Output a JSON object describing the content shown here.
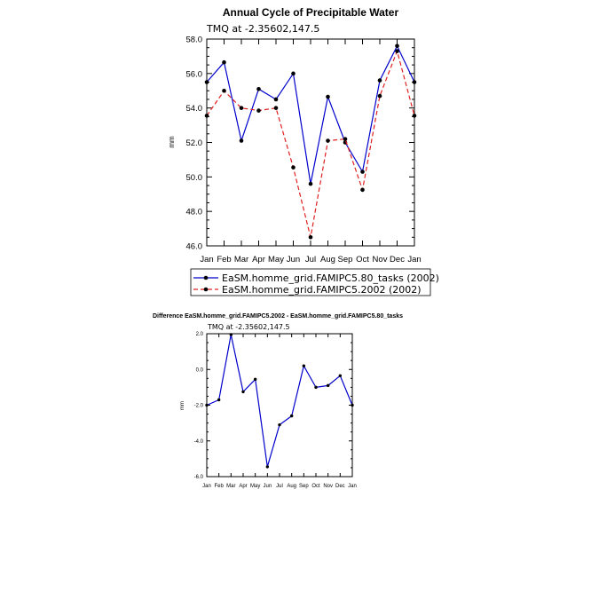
{
  "chart_data": [
    {
      "type": "line",
      "title": "Annual Cycle of Precipitable Water",
      "subtitle": "TMQ at -2.35602,147.5",
      "xlabel": "",
      "ylabel": "mm",
      "categories": [
        "Jan",
        "Feb",
        "Mar",
        "Apr",
        "May",
        "Jun",
        "Jul",
        "Aug",
        "Sep",
        "Oct",
        "Nov",
        "Dec",
        "Jan"
      ],
      "ylim": [
        46.0,
        58.0
      ],
      "yticks": [
        "46.0",
        "48.0",
        "50.0",
        "52.0",
        "54.0",
        "56.0",
        "58.0"
      ],
      "legend_position": "bottom",
      "series": [
        {
          "name": "EaSM.homme_grid.FAMIPC5.80_tasks (2002)",
          "color": "#0000cc",
          "dash": "solid",
          "values": [
            55.5,
            56.65,
            52.1,
            55.1,
            54.5,
            56.0,
            49.6,
            54.65,
            52.0,
            50.3,
            55.6,
            57.6,
            55.5
          ]
        },
        {
          "name": "EaSM.homme_grid.FAMIPC5.2002 (2002)",
          "color": "#e02020",
          "dash": "dashed",
          "values": [
            53.55,
            55.0,
            54.0,
            53.85,
            54.0,
            50.55,
            46.5,
            52.1,
            52.2,
            49.25,
            54.7,
            57.3,
            53.55
          ]
        }
      ]
    },
    {
      "type": "line",
      "title": "Difference EaSM.homme_grid.FAMIPC5.2002 - EaSM.homme_grid.FAMIPC5.80_tasks",
      "subtitle": "TMQ at -2.35602,147.5",
      "xlabel": "",
      "ylabel": "mm",
      "categories": [
        "Jan",
        "Feb",
        "Mar",
        "Apr",
        "May",
        "Jun",
        "Jul",
        "Aug",
        "Sep",
        "Oct",
        "Nov",
        "Dec",
        "Jan"
      ],
      "ylim": [
        -6.0,
        2.0
      ],
      "yticks": [
        "-6.0",
        "-4.0",
        "-2.0",
        "0.0",
        "2.0"
      ],
      "series": [
        {
          "color": "#0000cc",
          "dash": "solid",
          "values": [
            -2.0,
            -1.7,
            1.95,
            -1.25,
            -0.55,
            -5.45,
            -3.1,
            -2.6,
            0.2,
            -1.0,
            -0.9,
            -0.35,
            -2.0
          ]
        }
      ]
    }
  ]
}
